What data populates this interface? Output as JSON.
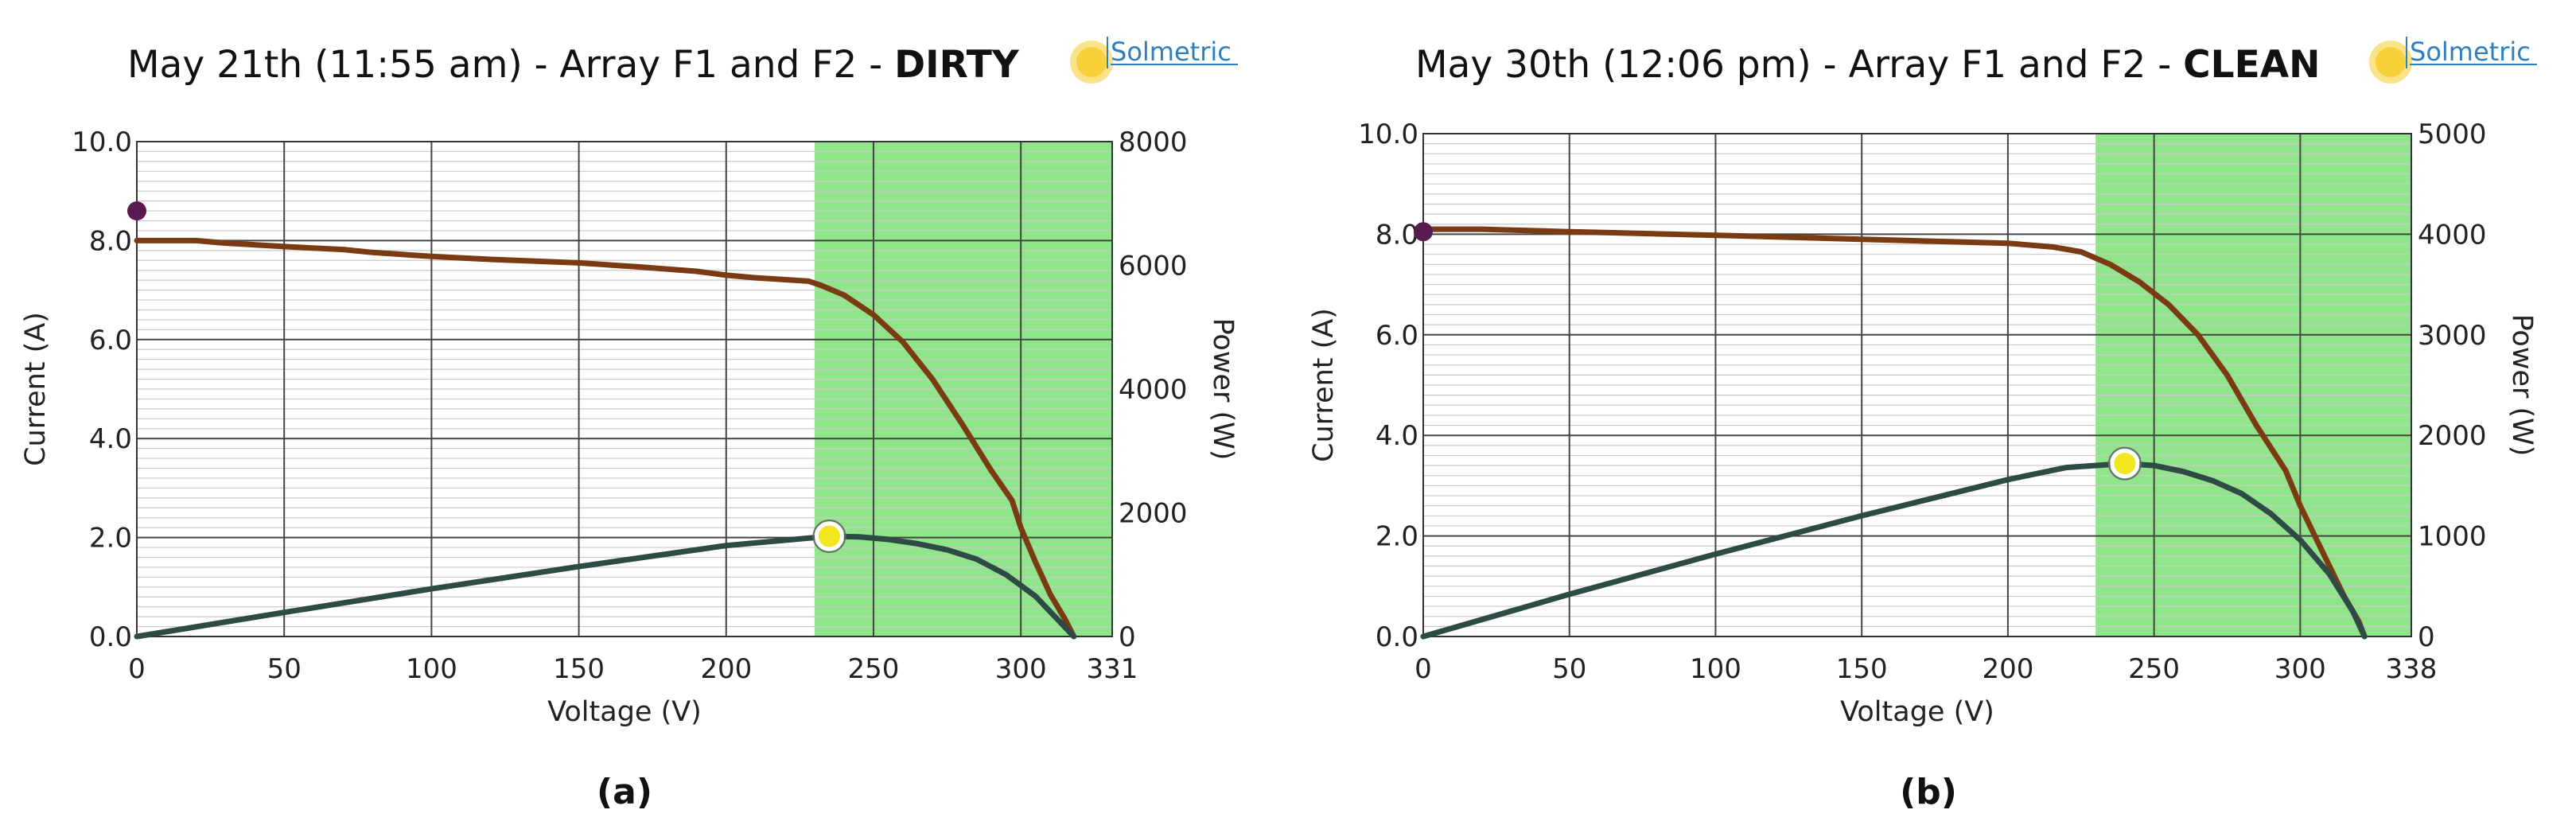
{
  "colors": {
    "current_curve": "#7a3a12",
    "power_curve": "#2e4a44",
    "highlight_region": "#90e58a",
    "isc_marker": "#5a1a52",
    "mpp_marker": "#f2e61c",
    "logo_text": "#2f7fbf"
  },
  "icons": {
    "logo": "solmetric-sun-logo"
  },
  "chart_data": [
    {
      "type": "line",
      "caption": "(a)",
      "title_prefix": "May 21th (11:55 am) - Array F1 and F2 - ",
      "title_emphasis": "DIRTY",
      "logo_text": "Solmetric",
      "xlabel": "Voltage (V)",
      "ylabel": "Current (A)",
      "y2label": "Power (W)",
      "xlim": [
        0,
        331
      ],
      "ylim": [
        0,
        10
      ],
      "y2lim": [
        0,
        8000
      ],
      "x_ticks": [
        "0",
        "50",
        "100",
        "150",
        "200",
        "250",
        "300",
        "331"
      ],
      "x_tick_values": [
        0,
        50,
        100,
        150,
        200,
        250,
        300,
        331
      ],
      "y_ticks": [
        "0.0",
        "2.0",
        "4.0",
        "6.0",
        "8.0",
        "10.0"
      ],
      "y_tick_values": [
        0,
        2,
        4,
        6,
        8,
        10
      ],
      "y2_ticks": [
        "0",
        "2000",
        "4000",
        "6000",
        "8000"
      ],
      "y2_tick_values": [
        0,
        2000,
        4000,
        6000,
        8000
      ],
      "grid": true,
      "highlight_x": [
        230,
        331
      ],
      "series": [
        {
          "axis": "left",
          "x": [
            0,
            20,
            30,
            50,
            70,
            80,
            100,
            120,
            150,
            170,
            190,
            200,
            210,
            228,
            232,
            240,
            250,
            260,
            270,
            280,
            290,
            297,
            300,
            305,
            310,
            315,
            318
          ],
          "values": [
            8.0,
            8.0,
            7.95,
            7.88,
            7.82,
            7.76,
            7.68,
            7.62,
            7.55,
            7.47,
            7.38,
            7.3,
            7.25,
            7.18,
            7.1,
            6.9,
            6.5,
            5.95,
            5.2,
            4.3,
            3.35,
            2.75,
            2.2,
            1.5,
            0.85,
            0.35,
            0.0
          ]
        },
        {
          "axis": "right",
          "x": [
            0,
            50,
            100,
            150,
            200,
            235,
            245,
            255,
            265,
            275,
            285,
            295,
            305,
            310,
            315,
            318
          ],
          "values": [
            0,
            390,
            770,
            1130,
            1470,
            1620,
            1610,
            1570,
            1500,
            1400,
            1250,
            1000,
            650,
            400,
            150,
            0
          ]
        }
      ],
      "points": [
        {
          "x": 0,
          "y": 8.6,
          "axis": "left",
          "kind": "isc"
        },
        {
          "x": 235,
          "y": 1620,
          "axis": "right",
          "kind": "mpp"
        }
      ]
    },
    {
      "type": "line",
      "caption": "(b)",
      "title_prefix": "May 30th (12:06 pm) - Array F1 and F2 - ",
      "title_emphasis": "CLEAN",
      "logo_text": "Solmetric",
      "xlabel": "Voltage (V)",
      "ylabel": "Current (A)",
      "y2label": "Power (W)",
      "xlim": [
        0,
        338
      ],
      "ylim": [
        0,
        10
      ],
      "y2lim": [
        0,
        5000
      ],
      "x_ticks": [
        "0",
        "50",
        "100",
        "150",
        "200",
        "250",
        "300",
        "338"
      ],
      "x_tick_values": [
        0,
        50,
        100,
        150,
        200,
        250,
        300,
        338
      ],
      "y_ticks": [
        "0.0",
        "2.0",
        "4.0",
        "6.0",
        "8.0",
        "10.0"
      ],
      "y_tick_values": [
        0,
        2,
        4,
        6,
        8,
        10
      ],
      "y2_ticks": [
        "0",
        "1000",
        "2000",
        "3000",
        "4000",
        "5000"
      ],
      "y2_tick_values": [
        0,
        1000,
        2000,
        3000,
        4000,
        5000
      ],
      "grid": true,
      "highlight_x": [
        230,
        338
      ],
      "series": [
        {
          "axis": "left",
          "x": [
            0,
            20,
            50,
            100,
            150,
            200,
            215,
            225,
            235,
            245,
            255,
            265,
            275,
            285,
            295,
            300,
            305,
            310,
            315,
            320,
            322
          ],
          "values": [
            8.1,
            8.1,
            8.05,
            7.98,
            7.9,
            7.82,
            7.75,
            7.65,
            7.4,
            7.05,
            6.6,
            6.0,
            5.2,
            4.2,
            3.3,
            2.6,
            2.0,
            1.4,
            0.8,
            0.3,
            0.0
          ]
        },
        {
          "axis": "right",
          "x": [
            0,
            50,
            100,
            150,
            200,
            220,
            240,
            250,
            260,
            270,
            280,
            290,
            300,
            310,
            318,
            322
          ],
          "values": [
            0,
            420,
            820,
            1200,
            1560,
            1680,
            1720,
            1700,
            1640,
            1550,
            1420,
            1220,
            960,
            620,
            250,
            0
          ]
        }
      ],
      "points": [
        {
          "x": 0,
          "y": 8.05,
          "axis": "left",
          "kind": "isc"
        },
        {
          "x": 240,
          "y": 1720,
          "axis": "right",
          "kind": "mpp"
        }
      ]
    }
  ]
}
